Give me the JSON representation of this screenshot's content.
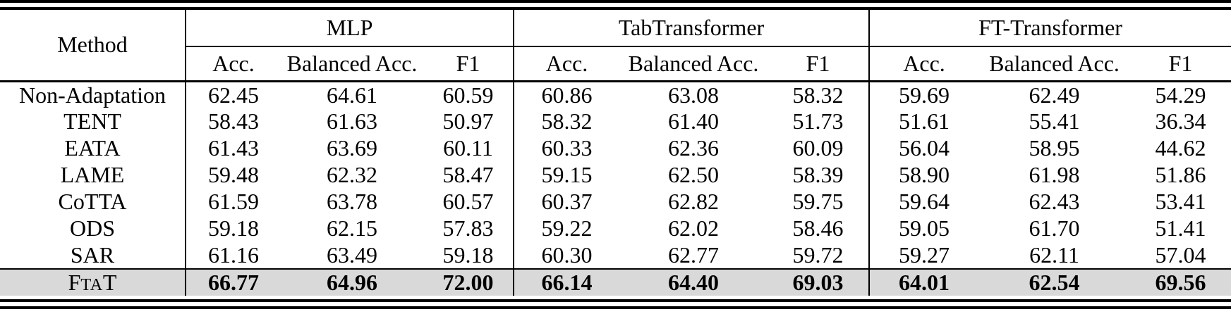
{
  "colors": {
    "text": "#000000",
    "background": "#ffffff",
    "highlight_row_background": "#d9d9d9"
  },
  "table": {
    "method_header": "Method",
    "groups": [
      {
        "label": "MLP",
        "columns": [
          "Acc.",
          "Balanced Acc.",
          "F1"
        ]
      },
      {
        "label": "TabTransformer",
        "columns": [
          "Acc.",
          "Balanced Acc.",
          "F1"
        ]
      },
      {
        "label": "FT-Transformer",
        "columns": [
          "Acc.",
          "Balanced Acc.",
          "F1"
        ]
      }
    ],
    "rows": [
      {
        "method": "Non-Adaptation",
        "values": [
          "62.45",
          "64.61",
          "60.59",
          "60.86",
          "63.08",
          "58.32",
          "59.69",
          "62.49",
          "54.29"
        ]
      },
      {
        "method": "TENT",
        "values": [
          "58.43",
          "61.63",
          "50.97",
          "58.32",
          "61.40",
          "51.73",
          "51.61",
          "55.41",
          "36.34"
        ]
      },
      {
        "method": "EATA",
        "values": [
          "61.43",
          "63.69",
          "60.11",
          "60.33",
          "62.36",
          "60.09",
          "56.04",
          "58.95",
          "44.62"
        ]
      },
      {
        "method": "LAME",
        "values": [
          "59.48",
          "62.32",
          "58.47",
          "59.15",
          "62.50",
          "58.39",
          "58.90",
          "61.98",
          "51.86"
        ]
      },
      {
        "method": "CoTTA",
        "values": [
          "61.59",
          "63.78",
          "60.57",
          "60.37",
          "62.82",
          "59.75",
          "59.64",
          "62.43",
          "53.41"
        ]
      },
      {
        "method": "ODS",
        "values": [
          "59.18",
          "62.15",
          "57.83",
          "59.22",
          "62.02",
          "58.46",
          "59.05",
          "61.70",
          "51.41"
        ]
      },
      {
        "method": "SAR",
        "values": [
          "61.16",
          "63.49",
          "59.18",
          "60.30",
          "62.77",
          "59.72",
          "59.27",
          "62.11",
          "57.04"
        ]
      }
    ],
    "highlight_row": {
      "method": "FtaT",
      "method_parts": {
        "pre": "F",
        "smallcaps": "TA",
        "post": "T"
      },
      "values": [
        "66.77",
        "64.96",
        "72.00",
        "66.14",
        "64.40",
        "69.03",
        "64.01",
        "62.54",
        "69.56"
      ]
    }
  }
}
